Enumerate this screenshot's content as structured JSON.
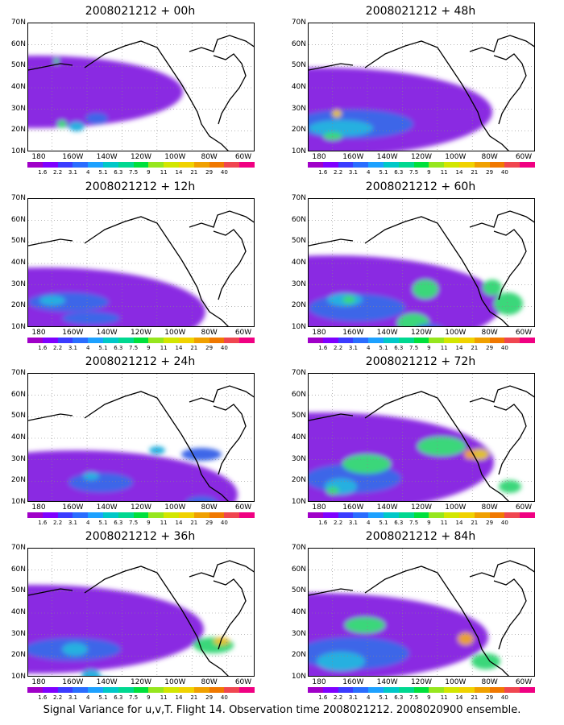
{
  "panels": [
    {
      "title": "2008021212 + 00h",
      "col": 0,
      "row": 0,
      "blobs": [
        [
          "#8a2be2",
          12,
          85,
          180,
          45
        ],
        [
          "#8a2be2",
          90,
          230,
          14,
          45
        ],
        [
          "#3d66e8",
          85,
          118,
          14,
          7
        ],
        [
          "#27b0e0",
          60,
          128,
          10,
          6
        ],
        [
          "#3bd77a",
          42,
          125,
          6,
          5
        ],
        [
          "#3bd77a",
          35,
          47,
          3.5,
          3.5
        ]
      ]
    },
    {
      "title": "2008021212 + 48h",
      "col": 1,
      "row": 0,
      "blobs": [
        [
          "#8a2be2",
          18,
          110,
          210,
          55
        ],
        [
          "#3d66e8",
          55,
          125,
          75,
          18
        ],
        [
          "#27b0e0",
          40,
          130,
          40,
          10
        ],
        [
          "#3bd77a",
          30,
          140,
          12,
          5
        ],
        [
          "#e0c030",
          35,
          112,
          6,
          5
        ],
        [
          "#3bd77a",
          20,
          215,
          50,
          15
        ],
        [
          "#e0c030",
          13,
          222,
          12,
          8
        ]
      ]
    },
    {
      "title": "2008021212 + 12h",
      "col": 0,
      "row": 1,
      "blobs": [
        [
          "#8a2be2",
          20,
          140,
          200,
          55
        ],
        [
          "#8a2be2",
          95,
          150,
          20,
          6
        ],
        [
          "#3d66e8",
          50,
          128,
          50,
          12
        ],
        [
          "#27b0e0",
          30,
          126,
          16,
          6
        ],
        [
          "#3d66e8",
          78,
          148,
          36,
          8
        ]
      ]
    },
    {
      "title": "2008021212 + 60h",
      "col": 1,
      "row": 1,
      "blobs": [
        [
          "#8a2be2",
          30,
          130,
          210,
          60
        ],
        [
          "#3d66e8",
          60,
          135,
          60,
          17
        ],
        [
          "#27b0e0",
          45,
          125,
          22,
          8
        ],
        [
          "#3bd77a",
          50,
          125,
          8,
          5
        ],
        [
          "#3bd77a",
          145,
          112,
          16,
          12
        ],
        [
          "#3bd77a",
          130,
          154,
          20,
          12
        ],
        [
          "#3bd77a",
          248,
          130,
          18,
          14
        ],
        [
          "#3bd77a",
          228,
          110,
          12,
          10
        ],
        [
          "#3d66e8",
          150,
          165,
          20,
          10
        ]
      ]
    },
    {
      "title": "2008021212 + 24h",
      "col": 0,
      "row": 2,
      "blobs": [
        [
          "#8a2be2",
          60,
          150,
          200,
          55
        ],
        [
          "#3d66e8",
          90,
          135,
          40,
          12
        ],
        [
          "#27b0e0",
          78,
          127,
          10,
          5
        ],
        [
          "#3d66e8",
          215,
          160,
          20,
          8
        ],
        [
          "#27b0e0",
          160,
          95,
          10,
          5
        ],
        [
          "#3d66e8",
          215,
          100,
          25,
          8
        ]
      ]
    },
    {
      "title": "2008021212 + 72h",
      "col": 1,
      "row": 2,
      "blobs": [
        [
          "#8a2be2",
          20,
          110,
          210,
          62
        ],
        [
          "#3d66e8",
          55,
          130,
          60,
          18
        ],
        [
          "#27b0e0",
          40,
          140,
          20,
          10
        ],
        [
          "#3bd77a",
          30,
          145,
          8,
          5
        ],
        [
          "#3bd77a",
          72,
          112,
          30,
          12
        ],
        [
          "#3bd77a",
          165,
          90,
          30,
          12
        ],
        [
          "#e0c030",
          212,
          100,
          12,
          7
        ],
        [
          "#e8a035",
          200,
          100,
          7,
          6
        ],
        [
          "#3bd77a",
          250,
          140,
          14,
          8
        ]
      ]
    },
    {
      "title": "2008021212 + 36h",
      "col": 0,
      "row": 3,
      "blobs": [
        [
          "#8a2be2",
          8,
          100,
          210,
          55
        ],
        [
          "#3d66e8",
          55,
          125,
          60,
          14
        ],
        [
          "#27b0e0",
          58,
          125,
          16,
          8
        ],
        [
          "#27b0e0",
          78,
          158,
          12,
          8
        ],
        [
          "#3bd77a",
          230,
          120,
          25,
          10
        ],
        [
          "#e0c030",
          240,
          115,
          10,
          5
        ],
        [
          "#27b0e0",
          95,
          165,
          10,
          5
        ]
      ]
    },
    {
      "title": "2008021212 + 84h",
      "col": 1,
      "row": 3,
      "blobs": [
        [
          "#8a2be2",
          8,
          110,
          215,
          55
        ],
        [
          "#3d66e8",
          55,
          130,
          70,
          20
        ],
        [
          "#27b0e0",
          40,
          140,
          30,
          12
        ],
        [
          "#3bd77a",
          35,
          200,
          12,
          6
        ],
        [
          "#3bd77a",
          90,
          200,
          20,
          10
        ],
        [
          "#3bd77a",
          70,
          95,
          25,
          10
        ],
        [
          "#e0c030",
          85,
          240,
          20,
          10
        ],
        [
          "#e8a035",
          195,
          112,
          10,
          8
        ],
        [
          "#3bd77a",
          220,
          140,
          18,
          10
        ]
      ]
    }
  ],
  "y_labels": [
    "70N",
    "60N",
    "50N",
    "40N",
    "30N",
    "20N",
    "10N"
  ],
  "x_labels": [
    "180",
    "160W",
    "140W",
    "120W",
    "100W",
    "80W",
    "60W"
  ],
  "colorbar": {
    "colors": [
      "#a000c8",
      "#7f00ff",
      "#3c3cff",
      "#2a6dff",
      "#1da1ff",
      "#00c8c8",
      "#00d890",
      "#00e03c",
      "#96e61e",
      "#d2e600",
      "#f0d200",
      "#f0a000",
      "#f07800",
      "#f04650",
      "#f00082"
    ],
    "labels": [
      "1.6",
      "2.2",
      "3.1",
      "4",
      "5.1",
      "6.3",
      "7.5",
      "9",
      "11",
      "14",
      "21",
      "29",
      "40"
    ]
  },
  "footer": "Signal Variance for u,v,T. Flight 14. Observation time 2008021212. 2008020900 ensemble."
}
